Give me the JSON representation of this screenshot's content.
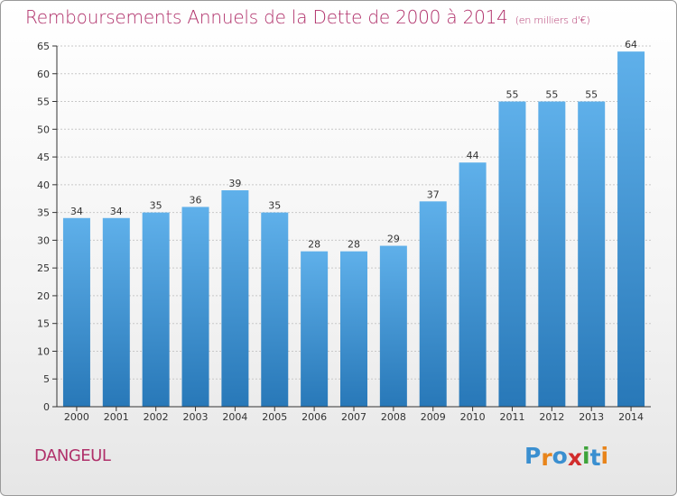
{
  "title": "Remboursements Annuels de la Dette de 2000 à 2014",
  "subtitle": "(en milliers d'€)",
  "commune": "DANGEUL",
  "logo": {
    "text": "Proxiti",
    "letters": [
      {
        "char": "P",
        "color": "#3a8fd0"
      },
      {
        "char": "r",
        "color": "#e8841a"
      },
      {
        "char": "o",
        "color": "#3a8fd0"
      },
      {
        "char": "x",
        "color": "#d12c2c"
      },
      {
        "char": "i",
        "color": "#3ea33a"
      },
      {
        "char": "t",
        "color": "#3a8fd0"
      },
      {
        "char": "i",
        "color": "#e8841a"
      }
    ]
  },
  "colors": {
    "title": "#b0306a",
    "bar_top": "#5fb0ea",
    "bar_bottom": "#2878b8",
    "grid": "#c8c8c8",
    "axis": "#333333"
  },
  "chart_data": {
    "type": "bar",
    "title": "Remboursements Annuels de la Dette de 2000 à 2014",
    "subtitle": "(en milliers d'€)",
    "categories": [
      "2000",
      "2001",
      "2002",
      "2003",
      "2004",
      "2005",
      "2006",
      "2007",
      "2008",
      "2009",
      "2010",
      "2011",
      "2012",
      "2013",
      "2014"
    ],
    "values": [
      34,
      34,
      35,
      36,
      39,
      35,
      28,
      28,
      29,
      37,
      44,
      55,
      55,
      55,
      64
    ],
    "ylim": [
      0,
      65
    ],
    "yticks": [
      0,
      5,
      10,
      15,
      20,
      25,
      30,
      35,
      40,
      45,
      50,
      55,
      60,
      65
    ],
    "grid": true,
    "show_data_labels": true
  }
}
